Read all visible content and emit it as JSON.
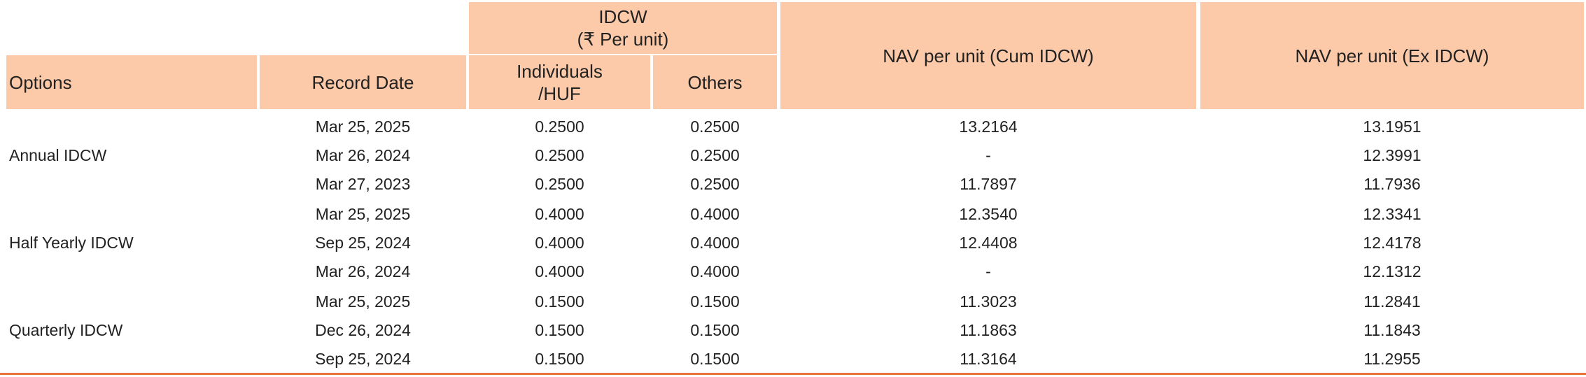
{
  "table": {
    "header": {
      "options": "Options",
      "record_date": "Record Date",
      "idcw": [
        "IDCW",
        "(₹ Per unit)"
      ],
      "individuals": [
        "Individuals",
        "/HUF"
      ],
      "others": "Others",
      "nav_cum": "NAV per unit (Cum IDCW)",
      "nav_ex": "NAV per unit (Ex IDCW)"
    },
    "groups": [
      {
        "option": "Annual IDCW",
        "rows": [
          [
            "Mar 25, 2025",
            "0.2500",
            "0.2500",
            "13.2164",
            "13.1951"
          ],
          [
            "Mar 26, 2024",
            "0.2500",
            "0.2500",
            "-",
            "12.3991"
          ],
          [
            "Mar 27, 2023",
            "0.2500",
            "0.2500",
            "11.7897",
            "11.7936"
          ]
        ]
      },
      {
        "option": "Half Yearly IDCW",
        "rows": [
          [
            "Mar 25, 2025",
            "0.4000",
            "0.4000",
            "12.3540",
            "12.3341"
          ],
          [
            "Sep 25, 2024",
            "0.4000",
            "0.4000",
            "12.4408",
            "12.4178"
          ],
          [
            "Mar 26, 2024",
            "0.4000",
            "0.4000",
            "-",
            "12.1312"
          ]
        ]
      },
      {
        "option": "Quarterly IDCW",
        "rows": [
          [
            "Mar 25, 2025",
            "0.1500",
            "0.1500",
            "11.3023",
            "11.2841"
          ],
          [
            "Dec 26, 2024",
            "0.1500",
            "0.1500",
            "11.1863",
            "11.1843"
          ],
          [
            "Sep 25, 2024",
            "0.1500",
            "0.1500",
            "11.3164",
            "11.2955"
          ]
        ]
      }
    ]
  }
}
